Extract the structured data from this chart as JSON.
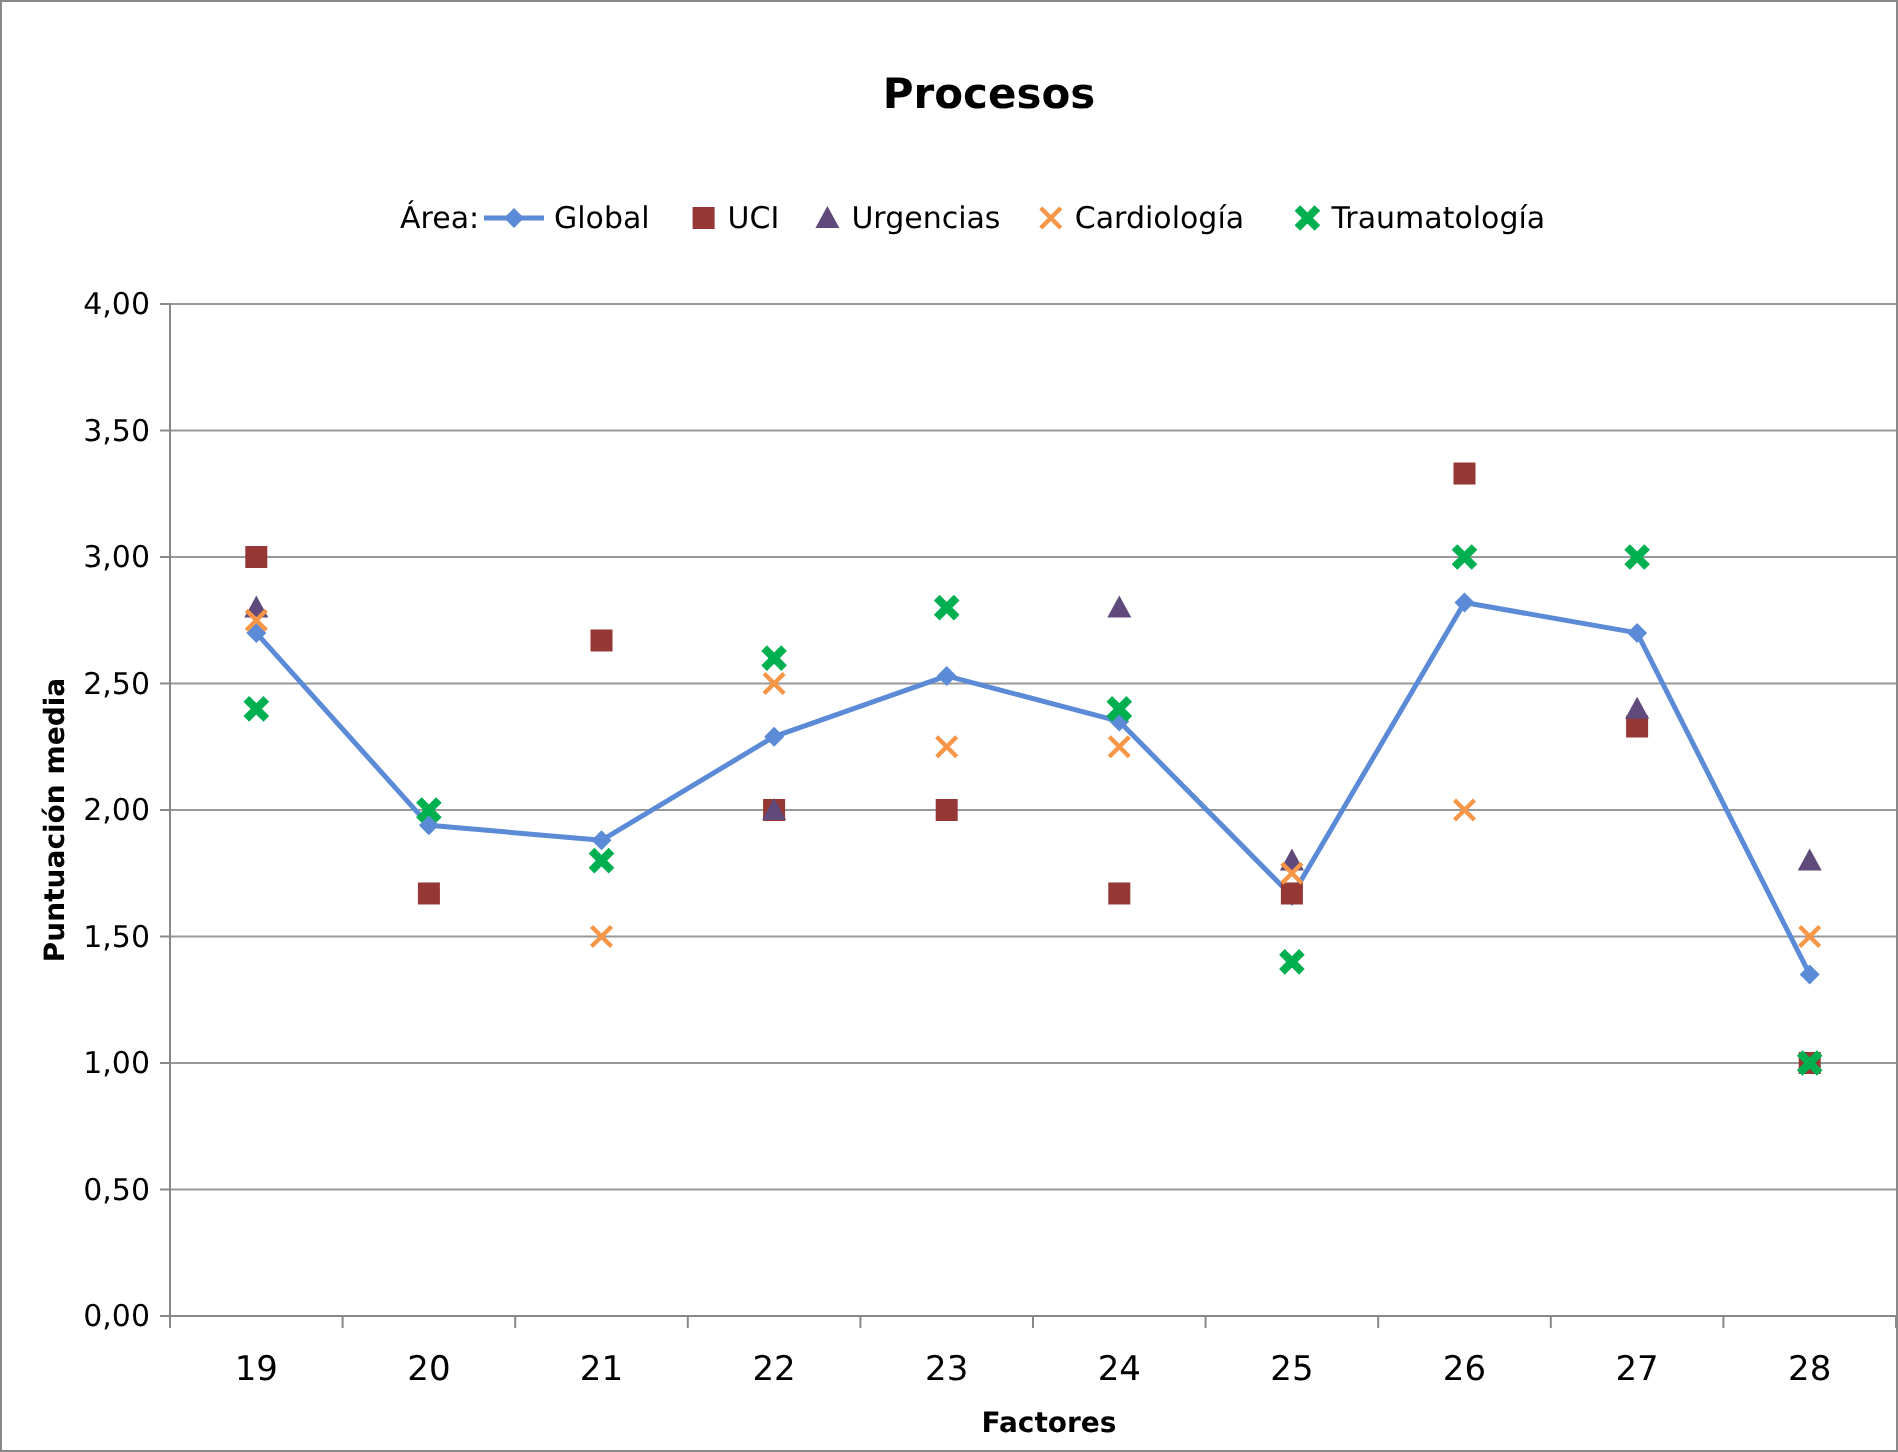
{
  "chart_data": {
    "type": "line",
    "title": "Procesos",
    "xlabel": "Factores",
    "ylabel": "Puntuación media",
    "legend_title": "Área:",
    "legend": "top",
    "grid": "y",
    "categories": [
      "19",
      "20",
      "21",
      "22",
      "23",
      "24",
      "25",
      "26",
      "27",
      "28"
    ],
    "ylim": [
      0,
      4
    ],
    "yticks": [
      {
        "value": 0,
        "label": "0,00"
      },
      {
        "value": 0.5,
        "label": "0,50"
      },
      {
        "value": 1,
        "label": "1,00"
      },
      {
        "value": 1.5,
        "label": "1,50"
      },
      {
        "value": 2,
        "label": "2,00"
      },
      {
        "value": 2.5,
        "label": "2,50"
      },
      {
        "value": 3,
        "label": "3,00"
      },
      {
        "value": 3.5,
        "label": "3,50"
      },
      {
        "value": 4,
        "label": "4,00"
      }
    ],
    "series": [
      {
        "name": "Global",
        "marker": "diamond",
        "color": "#5b8ad6",
        "values": [
          2.7,
          1.94,
          1.88,
          2.29,
          2.53,
          2.35,
          1.66,
          2.82,
          2.7,
          1.35
        ]
      },
      {
        "name": "UCI",
        "type": "scatter",
        "marker": "square",
        "color": "#953735",
        "values": [
          3.0,
          1.67,
          2.67,
          2.0,
          2.0,
          1.67,
          1.67,
          3.33,
          2.33,
          1.0
        ]
      },
      {
        "name": "Urgencias",
        "type": "scatter",
        "marker": "triangle",
        "color": "#604a7b",
        "values": [
          2.8,
          null,
          null,
          2.0,
          null,
          2.8,
          1.8,
          null,
          2.4,
          1.8
        ]
      },
      {
        "name": "Cardiología",
        "type": "scatter",
        "marker": "cross",
        "color": "#f79646",
        "values": [
          2.75,
          null,
          1.5,
          2.5,
          2.25,
          2.25,
          1.75,
          2.0,
          null,
          1.5
        ]
      },
      {
        "name": "Traumatología",
        "type": "scatter",
        "marker": "cross",
        "color": "#00b050",
        "values": [
          2.4,
          2.0,
          1.8,
          2.6,
          2.8,
          2.4,
          1.4,
          3.0,
          3.0,
          1.0
        ]
      }
    ]
  }
}
